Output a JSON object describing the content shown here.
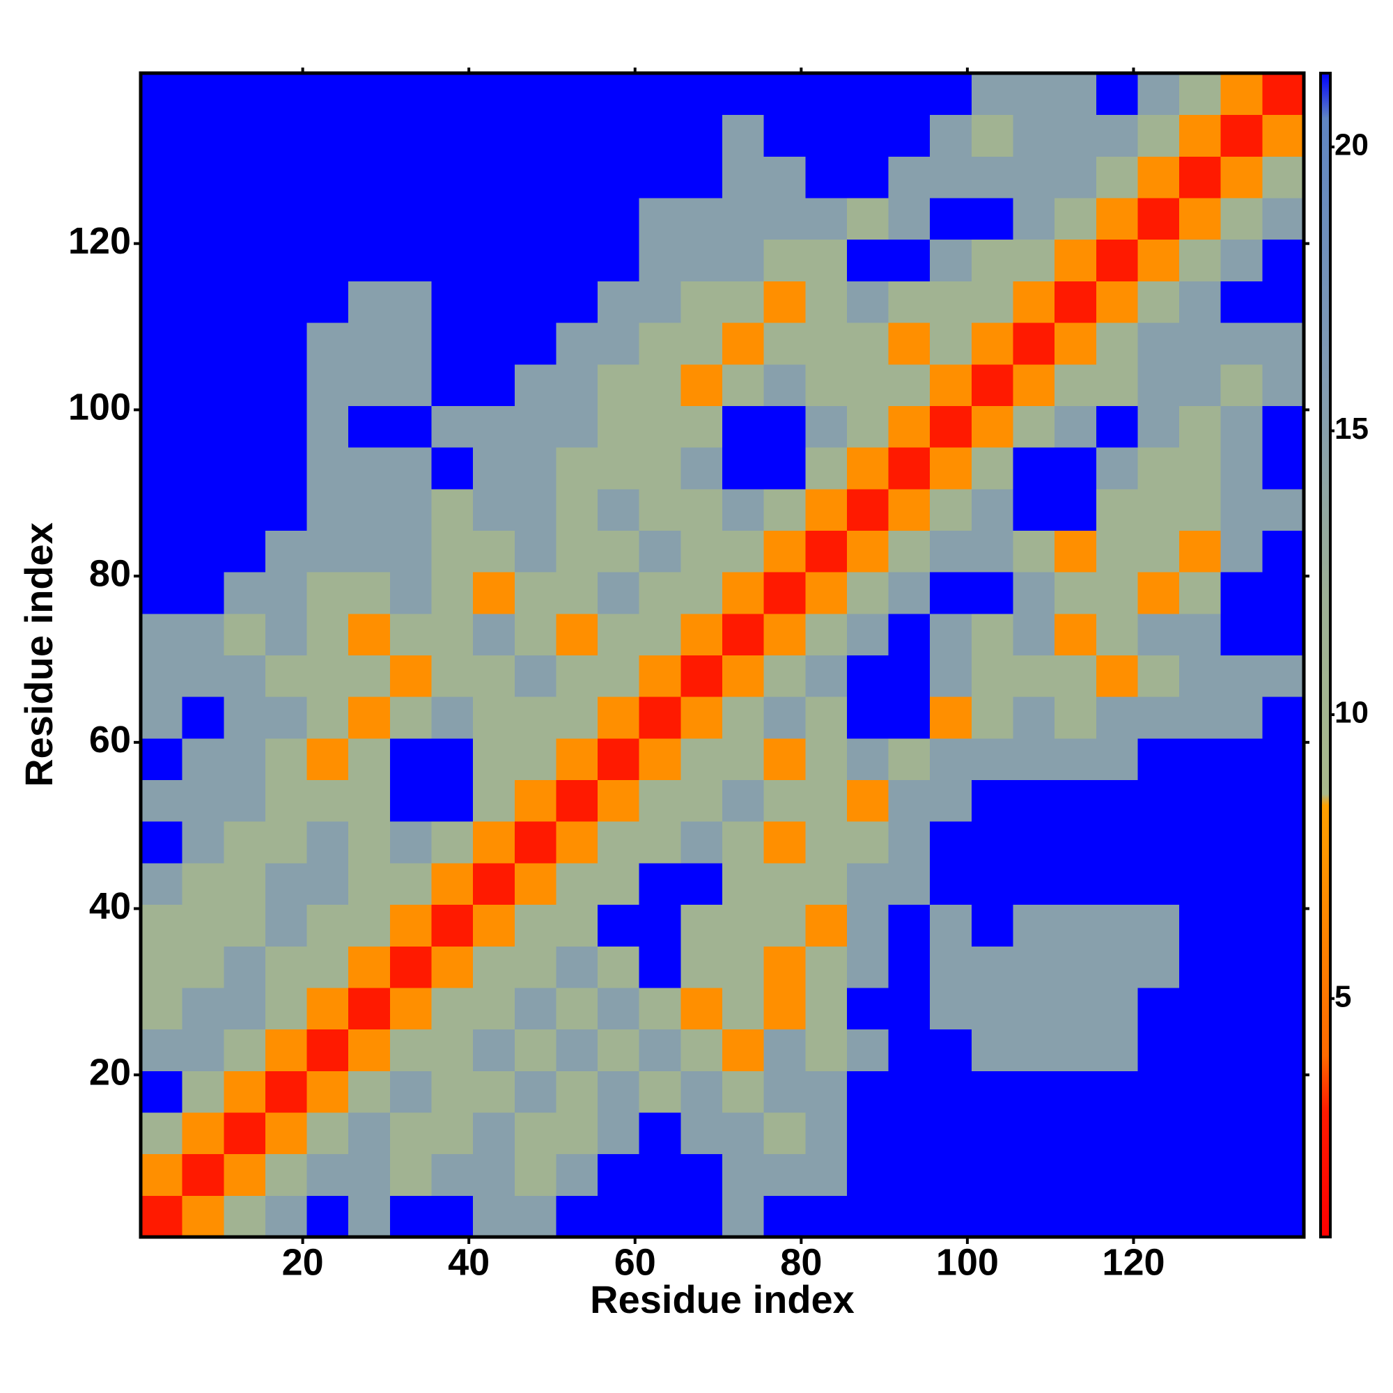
{
  "chart_data": {
    "type": "heatmap",
    "xlabel": "Residue index",
    "ylabel": "Residue index",
    "xlim": [
      0.5,
      140.5
    ],
    "ylim": [
      0.5,
      140.5
    ],
    "xticks": [
      20,
      40,
      60,
      80,
      100,
      120
    ],
    "yticks": [
      20,
      40,
      60,
      80,
      100,
      120
    ],
    "x": [
      3,
      8,
      13,
      18,
      23,
      28,
      33,
      38,
      43,
      48,
      53,
      58,
      63,
      68,
      73,
      78,
      83,
      88,
      93,
      98,
      103,
      108,
      113,
      118,
      123,
      128,
      133,
      138
    ],
    "y": [
      3,
      8,
      13,
      18,
      23,
      28,
      33,
      38,
      43,
      48,
      53,
      58,
      63,
      68,
      73,
      78,
      83,
      88,
      93,
      98,
      103,
      108,
      113,
      118,
      123,
      128,
      133,
      138
    ],
    "cell_size": 5,
    "clim": [
      0.8,
      21.3
    ],
    "cticks": [
      5,
      10,
      15,
      20
    ],
    "colorscale": [
      [
        0.8,
        "#ff0000"
      ],
      [
        3,
        "#ff1a00"
      ],
      [
        4,
        "#ff6a00"
      ],
      [
        8.4,
        "#ffa000"
      ],
      [
        8.6,
        "#a9b98c"
      ],
      [
        12,
        "#9db095"
      ],
      [
        16,
        "#819bb4"
      ],
      [
        20.5,
        "#5f85c2"
      ],
      [
        21.3,
        "#0000ff"
      ]
    ],
    "over_color": "#0000ff",
    "z": [
      [
        3,
        7,
        11,
        15,
        25,
        15,
        25,
        25,
        15,
        15,
        25,
        25,
        25,
        25,
        15,
        25,
        25,
        25,
        25,
        25,
        25,
        25,
        25,
        25,
        25,
        25,
        25,
        25
      ],
      [
        7,
        3,
        7,
        11,
        15,
        15,
        11,
        15,
        15,
        11,
        15,
        25,
        25,
        25,
        15,
        15,
        15,
        25,
        25,
        25,
        25,
        25,
        25,
        25,
        25,
        25,
        25,
        25
      ],
      [
        11,
        7,
        3,
        7,
        11,
        15,
        11,
        11,
        15,
        11,
        11,
        15,
        25,
        15,
        15,
        11,
        15,
        25,
        25,
        25,
        25,
        25,
        25,
        25,
        25,
        25,
        25,
        25
      ],
      [
        25,
        11,
        7,
        3,
        7,
        11,
        15,
        11,
        11,
        15,
        11,
        15,
        11,
        15,
        11,
        15,
        15,
        25,
        25,
        25,
        25,
        25,
        25,
        25,
        25,
        25,
        25,
        25
      ],
      [
        15,
        15,
        11,
        7,
        3,
        7,
        11,
        11,
        15,
        11,
        15,
        11,
        15,
        11,
        7,
        15,
        11,
        15,
        25,
        25,
        15,
        15,
        15,
        15,
        25,
        25,
        25,
        25
      ],
      [
        11,
        15,
        15,
        11,
        7,
        3,
        7,
        11,
        11,
        15,
        11,
        15,
        11,
        7,
        11,
        7,
        11,
        25,
        25,
        15,
        15,
        15,
        15,
        15,
        25,
        25,
        25,
        25
      ],
      [
        11,
        11,
        15,
        11,
        11,
        7,
        3,
        7,
        11,
        11,
        15,
        11,
        25,
        11,
        11,
        7,
        11,
        15,
        25,
        15,
        15,
        15,
        15,
        15,
        15,
        25,
        25,
        25
      ],
      [
        11,
        11,
        11,
        15,
        11,
        11,
        7,
        3,
        7,
        11,
        11,
        25,
        25,
        11,
        11,
        11,
        7,
        15,
        25,
        15,
        25,
        15,
        15,
        15,
        15,
        25,
        25,
        25
      ],
      [
        15,
        11,
        11,
        15,
        15,
        11,
        11,
        7,
        3,
        7,
        11,
        11,
        25,
        25,
        11,
        11,
        11,
        15,
        15,
        25,
        25,
        25,
        25,
        25,
        25,
        25,
        25,
        25
      ],
      [
        25,
        15,
        11,
        11,
        15,
        11,
        15,
        11,
        7,
        3,
        7,
        11,
        11,
        15,
        11,
        7,
        11,
        11,
        15,
        25,
        25,
        25,
        25,
        25,
        25,
        25,
        25,
        25
      ],
      [
        15,
        15,
        15,
        11,
        11,
        11,
        25,
        25,
        11,
        7,
        3,
        7,
        11,
        11,
        15,
        11,
        11,
        7,
        15,
        15,
        25,
        25,
        25,
        25,
        25,
        25,
        25,
        25
      ],
      [
        25,
        15,
        15,
        11,
        7,
        11,
        25,
        25,
        11,
        11,
        7,
        3,
        7,
        11,
        11,
        7,
        11,
        15,
        11,
        15,
        15,
        15,
        15,
        15,
        25,
        25,
        25,
        25
      ],
      [
        15,
        25,
        15,
        15,
        11,
        7,
        11,
        15,
        11,
        11,
        11,
        7,
        3,
        7,
        11,
        15,
        11,
        25,
        25,
        7,
        11,
        15,
        11,
        15,
        15,
        15,
        15,
        25
      ],
      [
        15,
        15,
        15,
        11,
        11,
        11,
        7,
        11,
        11,
        15,
        11,
        11,
        7,
        3,
        7,
        11,
        15,
        25,
        25,
        15,
        11,
        11,
        11,
        7,
        11,
        15,
        15,
        15
      ],
      [
        15,
        15,
        11,
        15,
        11,
        7,
        11,
        11,
        15,
        11,
        7,
        11,
        11,
        7,
        3,
        7,
        11,
        15,
        25,
        15,
        11,
        15,
        7,
        11,
        15,
        15,
        25,
        25
      ],
      [
        25,
        25,
        15,
        15,
        11,
        11,
        15,
        11,
        7,
        11,
        11,
        15,
        11,
        11,
        7,
        3,
        7,
        11,
        15,
        25,
        25,
        15,
        11,
        11,
        7,
        11,
        25,
        25
      ],
      [
        25,
        25,
        25,
        15,
        15,
        15,
        15,
        11,
        11,
        15,
        11,
        11,
        15,
        11,
        11,
        7,
        3,
        7,
        11,
        15,
        15,
        11,
        7,
        11,
        11,
        7,
        15,
        25
      ],
      [
        25,
        25,
        25,
        25,
        15,
        15,
        15,
        11,
        15,
        15,
        11,
        15,
        11,
        11,
        15,
        11,
        7,
        3,
        7,
        11,
        15,
        25,
        25,
        11,
        11,
        11,
        15,
        15
      ],
      [
        25,
        25,
        25,
        25,
        15,
        15,
        15,
        25,
        15,
        15,
        11,
        11,
        11,
        15,
        25,
        25,
        11,
        7,
        3,
        7,
        11,
        25,
        25,
        15,
        11,
        11,
        15,
        25
      ],
      [
        25,
        25,
        25,
        25,
        15,
        25,
        25,
        15,
        15,
        15,
        15,
        11,
        11,
        11,
        25,
        25,
        15,
        11,
        7,
        3,
        7,
        11,
        15,
        25,
        15,
        11,
        15,
        25
      ],
      [
        25,
        25,
        25,
        25,
        15,
        15,
        15,
        25,
        25,
        15,
        15,
        11,
        11,
        7,
        11,
        15,
        11,
        11,
        11,
        7,
        3,
        7,
        11,
        11,
        15,
        15,
        11,
        15
      ],
      [
        25,
        25,
        25,
        25,
        15,
        15,
        15,
        25,
        25,
        25,
        15,
        15,
        11,
        11,
        7,
        11,
        11,
        11,
        7,
        11,
        7,
        3,
        7,
        11,
        15,
        15,
        15,
        15
      ],
      [
        25,
        25,
        25,
        25,
        25,
        15,
        15,
        25,
        25,
        25,
        25,
        15,
        15,
        11,
        11,
        7,
        11,
        15,
        11,
        11,
        11,
        7,
        3,
        7,
        11,
        15,
        25,
        25
      ],
      [
        25,
        25,
        25,
        25,
        25,
        25,
        25,
        25,
        25,
        25,
        25,
        25,
        15,
        15,
        15,
        11,
        11,
        25,
        25,
        15,
        11,
        11,
        7,
        3,
        7,
        11,
        15,
        25
      ],
      [
        25,
        25,
        25,
        25,
        25,
        25,
        25,
        25,
        25,
        25,
        25,
        25,
        15,
        15,
        15,
        15,
        15,
        11,
        15,
        25,
        25,
        15,
        11,
        7,
        3,
        7,
        11,
        15
      ],
      [
        25,
        25,
        25,
        25,
        25,
        25,
        25,
        25,
        25,
        25,
        25,
        25,
        25,
        25,
        15,
        15,
        25,
        25,
        15,
        15,
        15,
        15,
        15,
        11,
        7,
        3,
        7,
        11
      ],
      [
        25,
        25,
        25,
        25,
        25,
        25,
        25,
        25,
        25,
        25,
        25,
        25,
        25,
        25,
        15,
        25,
        25,
        25,
        25,
        15,
        11,
        15,
        15,
        15,
        11,
        7,
        3,
        7
      ],
      [
        25,
        25,
        25,
        25,
        25,
        25,
        25,
        25,
        25,
        25,
        25,
        25,
        25,
        25,
        25,
        25,
        25,
        25,
        25,
        25,
        15,
        15,
        15,
        25,
        15,
        11,
        7,
        3
      ]
    ]
  }
}
